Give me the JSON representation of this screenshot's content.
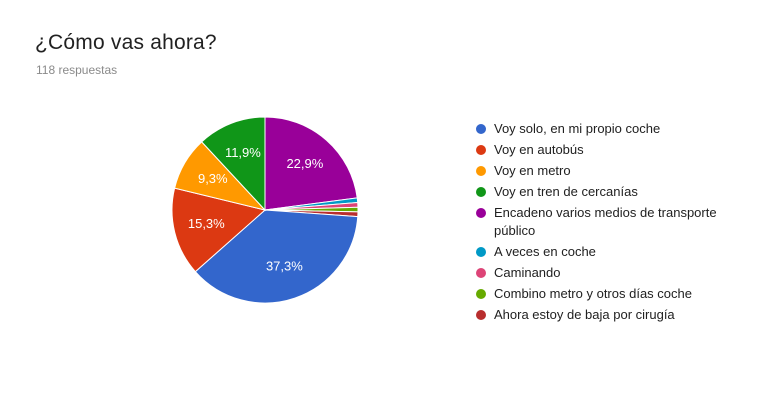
{
  "header": {
    "title": "¿Cómo vas ahora?",
    "subtitle": "118 respuestas"
  },
  "chart_data": {
    "type": "pie",
    "title": "¿Cómo vas ahora?",
    "responses_label": "118 respuestas",
    "legend_position": "right",
    "start_angle_deg": 0,
    "direction": "clockwise",
    "label_color": "#ffffff",
    "background_color": "#ffffff",
    "slices": [
      {
        "label": "Voy solo, en mi propio coche",
        "percent": 37.3,
        "percent_label": "37,3%",
        "color": "#3366CC"
      },
      {
        "label": "Voy en autobús",
        "percent": 15.3,
        "percent_label": "15,3%",
        "color": "#DC3912"
      },
      {
        "label": "Voy en metro",
        "percent": 9.3,
        "percent_label": "9,3%",
        "color": "#FF9900"
      },
      {
        "label": "Voy en tren de cercanías",
        "percent": 11.9,
        "percent_label": "11,9%",
        "color": "#109618"
      },
      {
        "label": "Encadeno varios medios de transporte público",
        "percent": 22.9,
        "percent_label": "22,9%",
        "color": "#990099"
      },
      {
        "label": "A veces en coche",
        "percent": 0.8,
        "percent_label": "",
        "color": "#0099C6"
      },
      {
        "label": "Caminando",
        "percent": 0.8,
        "percent_label": "",
        "color": "#DD4477"
      },
      {
        "label": "Combino metro y otros días coche",
        "percent": 0.8,
        "percent_label": "",
        "color": "#66AA00"
      },
      {
        "label": "Ahora estoy de baja por cirugía",
        "percent": 0.8,
        "percent_label": "",
        "color": "#B82E2E"
      }
    ],
    "draw_order": [
      4,
      5,
      6,
      7,
      8,
      0,
      1,
      2,
      3
    ]
  }
}
